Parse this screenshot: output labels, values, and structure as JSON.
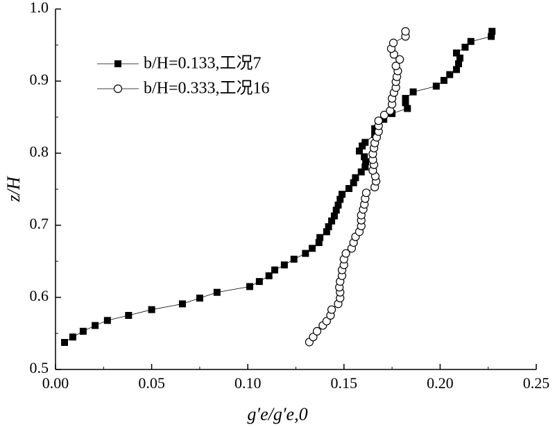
{
  "chart_data": {
    "type": "line",
    "x_label": "g′e/g′e,0",
    "y_label": "z/H",
    "xlim": [
      0,
      0.25
    ],
    "ylim": [
      0.5,
      1.0
    ],
    "xticks": [
      {
        "value": 0,
        "label": "0.00"
      },
      {
        "value": 0.05,
        "label": "0.05"
      },
      {
        "value": 0.1,
        "label": "0.10"
      },
      {
        "value": 0.15,
        "label": "0.15"
      },
      {
        "value": 0.2,
        "label": "0.20"
      },
      {
        "value": 0.25,
        "label": "0.25"
      }
    ],
    "yticks": [
      0.5,
      0.6,
      0.7,
      0.8,
      0.9,
      {
        "value": 1.0,
        "label": "1.0"
      }
    ],
    "legend": "upper left",
    "series": [
      {
        "name": "b/H=0.133,工况7",
        "color": "#000000",
        "marker": "square",
        "x": [
          0.0047,
          0.009,
          0.0144,
          0.0206,
          0.027,
          0.038,
          0.05,
          0.066,
          0.075,
          0.084,
          0.101,
          0.106,
          0.111,
          0.114,
          0.119,
          0.124,
          0.13,
          0.1335,
          0.137,
          0.1375,
          0.141,
          0.142,
          0.1436,
          0.145,
          0.146,
          0.147,
          0.148,
          0.149,
          0.1526,
          0.155,
          0.156,
          0.159,
          0.161,
          0.1613,
          0.1606,
          0.158,
          0.1595,
          0.161,
          0.166,
          0.166,
          0.1707,
          0.175,
          0.183,
          0.182,
          0.182,
          0.186,
          0.198,
          0.202,
          0.205,
          0.2085,
          0.2096,
          0.2103,
          0.2085,
          0.213,
          0.216,
          0.2266,
          0.227
        ],
        "values": [
          0.5375,
          0.545,
          0.553,
          0.561,
          0.568,
          0.575,
          0.583,
          0.591,
          0.599,
          0.607,
          0.615,
          0.622,
          0.63,
          0.638,
          0.645,
          0.653,
          0.661,
          0.668,
          0.676,
          0.683,
          0.691,
          0.698,
          0.706,
          0.713,
          0.721,
          0.728,
          0.736,
          0.743,
          0.751,
          0.759,
          0.766,
          0.774,
          0.781,
          0.788,
          0.795,
          0.803,
          0.81,
          0.815,
          0.826,
          0.834,
          0.847,
          0.855,
          0.862,
          0.87,
          0.876,
          0.885,
          0.893,
          0.901,
          0.909,
          0.916,
          0.924,
          0.932,
          0.939,
          0.947,
          0.955,
          0.962,
          0.969
        ]
      },
      {
        "name": "b/H=0.333,工况16",
        "color": "#000000",
        "marker": "circle",
        "x": [
          0.132,
          0.134,
          0.136,
          0.139,
          0.141,
          0.143,
          0.1436,
          0.147,
          0.148,
          0.148,
          0.1476,
          0.148,
          0.149,
          0.149,
          0.15,
          0.15,
          0.151,
          0.154,
          0.155,
          0.156,
          0.158,
          0.159,
          0.159,
          0.159,
          0.16,
          0.1606,
          0.161,
          0.1616,
          0.166,
          0.1667,
          0.1663,
          0.165,
          0.1656,
          0.165,
          0.165,
          0.1656,
          0.166,
          0.167,
          0.168,
          0.168,
          0.168,
          0.171,
          0.174,
          0.175,
          0.175,
          0.176,
          0.177,
          0.177,
          0.1775,
          0.178,
          0.177,
          0.179,
          0.176,
          0.1746,
          0.1757,
          0.182,
          0.182
        ],
        "values": [
          0.538,
          0.545,
          0.553,
          0.561,
          0.567,
          0.575,
          0.583,
          0.591,
          0.599,
          0.607,
          0.614,
          0.622,
          0.63,
          0.638,
          0.645,
          0.653,
          0.661,
          0.668,
          0.676,
          0.684,
          0.691,
          0.699,
          0.707,
          0.714,
          0.722,
          0.729,
          0.737,
          0.745,
          0.753,
          0.761,
          0.768,
          0.776,
          0.784,
          0.791,
          0.799,
          0.807,
          0.814,
          0.822,
          0.83,
          0.838,
          0.845,
          0.853,
          0.859,
          0.868,
          0.876,
          0.884,
          0.891,
          0.899,
          0.906,
          0.914,
          0.921,
          0.93,
          0.937,
          0.945,
          0.953,
          0.962,
          0.969
        ]
      }
    ]
  }
}
